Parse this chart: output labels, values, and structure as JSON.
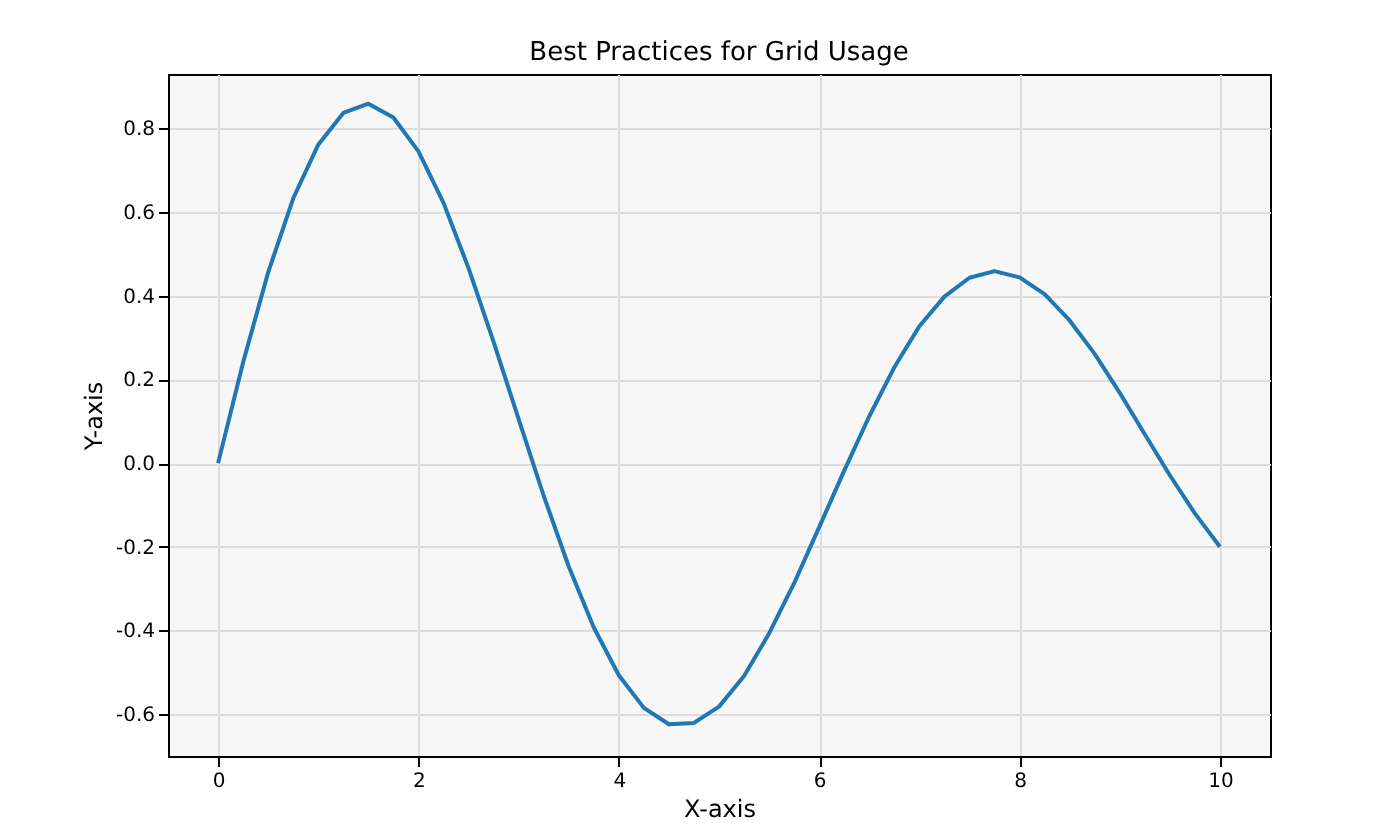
{
  "chart_data": {
    "type": "line",
    "title": "Best Practices for Grid Usage",
    "xlabel": "X-axis",
    "ylabel": "Y-axis",
    "x": [
      0,
      0.25,
      0.5,
      0.75,
      1,
      1.25,
      1.5,
      1.75,
      2,
      2.25,
      2.5,
      2.75,
      3,
      3.25,
      3.5,
      3.75,
      4,
      4.25,
      4.5,
      4.75,
      5,
      5.25,
      5.5,
      5.75,
      6,
      6.25,
      6.5,
      6.75,
      7,
      7.25,
      7.5,
      7.75,
      8,
      8.25,
      8.5,
      8.75,
      9,
      9.25,
      9.5,
      9.75,
      10
    ],
    "series": [
      {
        "color": "#1f77b4",
        "values": [
          0,
          0.241,
          0.456,
          0.633,
          0.761,
          0.837,
          0.859,
          0.826,
          0.745,
          0.622,
          0.466,
          0.29,
          0.105,
          -0.078,
          -0.247,
          -0.393,
          -0.507,
          -0.585,
          -0.624,
          -0.621,
          -0.582,
          -0.509,
          -0.407,
          -0.287,
          -0.153,
          -0.018,
          0.112,
          0.229,
          0.327,
          0.398,
          0.443,
          0.459,
          0.444,
          0.404,
          0.341,
          0.261,
          0.168,
          0.069,
          -0.029,
          -0.12,
          -0.2
        ]
      }
    ],
    "xlim": [
      -0.5,
      10.5
    ],
    "ylim": [
      -0.7,
      0.93
    ],
    "xticks": [
      0,
      2,
      4,
      6,
      8,
      10
    ],
    "yticks": [
      -0.6,
      -0.4,
      -0.2,
      {
        "value": 0,
        "label": "0.0"
      },
      0.2,
      0.4,
      0.6,
      0.8
    ],
    "grid": true,
    "marker": "none",
    "line_style": "solid"
  }
}
